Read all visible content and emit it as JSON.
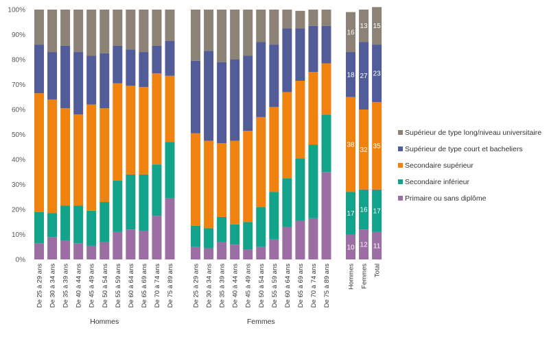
{
  "chart_data": {
    "type": "bar",
    "stacked": true,
    "percent": true,
    "ylim": [
      0,
      100
    ],
    "yticks": [
      "0%",
      "10%",
      "20%",
      "30%",
      "40%",
      "50%",
      "60%",
      "70%",
      "80%",
      "90%",
      "100%"
    ],
    "grid": false,
    "legend_position": "right",
    "groups": [
      {
        "name": "Hommes",
        "categories": [
          "De 25 à 29 ans",
          "De 30 à 34 ans",
          "De 35 à 39 ans",
          "De 40 à 44 ans",
          "De 45 à 49 ans",
          "De 50 à 54 ans",
          "De 55 à 59 ans",
          "De 60 à 64 ans",
          "De 65 à 69 ans",
          "De 70 à 74 ans",
          "De 75 à 89 ans"
        ]
      },
      {
        "name": "Femmes",
        "categories": [
          "De 25 à 29 ans",
          "De 30 à 34 ans",
          "De 35 à 39 ans",
          "De 40 à 44 ans",
          "De 45 à 49 ans",
          "De 50 à 54 ans",
          "De 55 à 59 ans",
          "De 60 à 64 ans",
          "De 65 à 69 ans",
          "De 70 à 74 ans",
          "De 75 à 89 ans"
        ]
      },
      {
        "name": "",
        "categories": [
          "Hommes",
          "Femmes",
          "Total"
        ]
      }
    ],
    "series": [
      {
        "name": "Primaire ou sans diplôme",
        "color": "#9b6fa3",
        "values": [
          [
            6.5,
            9,
            7.5,
            6.5,
            5.5,
            7,
            11,
            12,
            11.5,
            17.5,
            24.5
          ],
          [
            5,
            4.5,
            7,
            6,
            4,
            5,
            8,
            13,
            15.5,
            16.5,
            35
          ],
          [
            10,
            12,
            11
          ]
        ]
      },
      {
        "name": "Secondaire inférieur",
        "color": "#12a38a",
        "values": [
          [
            12.5,
            9.5,
            14,
            15,
            14,
            16,
            20.5,
            22,
            22.5,
            20.5,
            22.5
          ],
          [
            8.5,
            8,
            10,
            8,
            11,
            16,
            19,
            19.5,
            25,
            29.5,
            23
          ],
          [
            17,
            16,
            17
          ]
        ]
      },
      {
        "name": "Secondaire supérieur",
        "color": "#f0830f",
        "values": [
          [
            47.5,
            45.5,
            39,
            36.5,
            42.5,
            37.5,
            39,
            35.5,
            35,
            36.5,
            26.5
          ],
          [
            37,
            35,
            29.5,
            33.5,
            36.5,
            36,
            34,
            34.5,
            31,
            29,
            20.5
          ],
          [
            38,
            32,
            35
          ]
        ]
      },
      {
        "name": "Supérieur de type court et bacheliers",
        "color": "#525c99",
        "values": [
          [
            19.5,
            19,
            25,
            25,
            19.5,
            22,
            15,
            14.5,
            14,
            11,
            14
          ],
          [
            29,
            36,
            32.5,
            32.5,
            30,
            30,
            25,
            25.5,
            21,
            18.5,
            15
          ],
          [
            18,
            27,
            23
          ]
        ]
      },
      {
        "name": "Supérieur de type long/niveau universitaire",
        "color": "#8c8275",
        "values": [
          [
            14,
            17,
            14.5,
            17,
            18.5,
            17.5,
            14.5,
            16,
            17,
            14.5,
            12.5
          ],
          [
            20.5,
            16.5,
            21,
            20,
            18.5,
            13,
            14,
            7.5,
            7,
            6.5,
            6.5
          ],
          [
            16,
            13,
            15
          ]
        ]
      }
    ],
    "data_labels_group": 2,
    "data_labels": [
      [
        "10",
        "12",
        "11"
      ],
      [
        "17",
        "16",
        "17"
      ],
      [
        "38",
        "32",
        "35"
      ],
      [
        "18",
        "27",
        "23"
      ],
      [
        "16",
        "13",
        "15"
      ]
    ],
    "legend_order": [
      4,
      3,
      2,
      1,
      0
    ]
  }
}
